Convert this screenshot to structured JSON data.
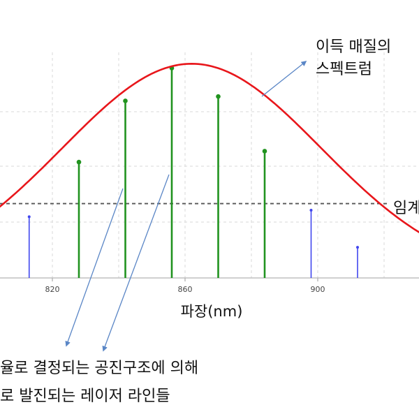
{
  "annotations": {
    "gain_line1": "이득 매질의",
    "gain_line2": "스펙트럼",
    "threshold": "임계",
    "bottom_line1": "율로 결정되는 공진구조에 의해",
    "bottom_line2": "로 발진되는 레이저 라인들"
  },
  "chart_data": {
    "type": "line",
    "xlabel": "파장(nm)",
    "x_ticks": [
      820,
      860,
      900
    ],
    "x_tick_labels": [
      "820",
      "860",
      "900"
    ],
    "grid": true,
    "gain_curve": {
      "center": 862,
      "peak": 0.98,
      "sigma": 39,
      "color": "#e8161b"
    },
    "threshold": 0.34,
    "threshold_color": "#555555",
    "lasing_lines": [
      {
        "x": 828,
        "y": 0.53
      },
      {
        "x": 842,
        "y": 0.81
      },
      {
        "x": 856,
        "y": 0.96
      },
      {
        "x": 870,
        "y": 0.83
      },
      {
        "x": 884,
        "y": 0.58
      }
    ],
    "sub_threshold_lines": [
      {
        "x": 813,
        "y": 0.28
      },
      {
        "x": 898,
        "y": 0.31
      },
      {
        "x": 912,
        "y": 0.14
      }
    ],
    "lasing_color": "#21931f",
    "sub_threshold_color": "#4046ee",
    "arrow_color": "#5a86c6"
  }
}
